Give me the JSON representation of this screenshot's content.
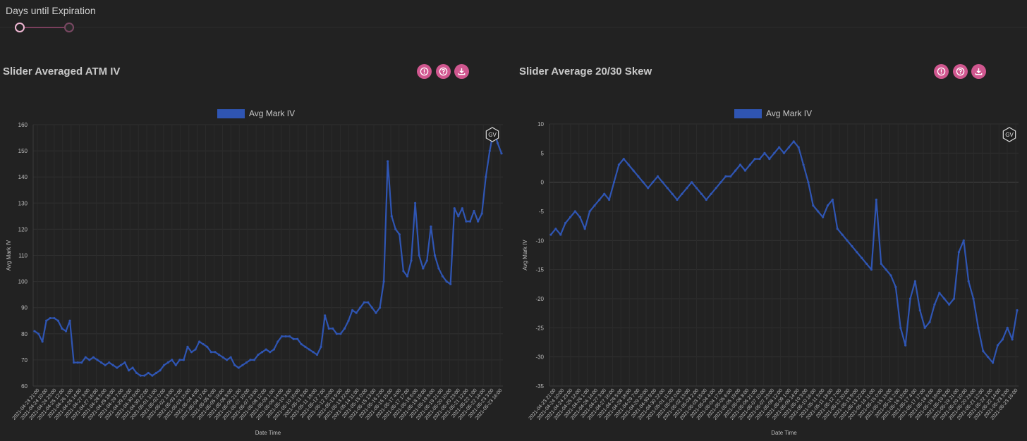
{
  "slider": {
    "label": "Days until Expiration",
    "min_handle": "min",
    "max_handle": "max"
  },
  "panels": [
    {
      "title": "Slider Averaged ATM IV",
      "icons": [
        "info-icon",
        "help-icon",
        "download-icon"
      ]
    },
    {
      "title": "Slider Average 20/30 Skew",
      "icons": [
        "info-icon",
        "help-icon",
        "download-icon"
      ]
    }
  ],
  "watermark": "GV",
  "colors": {
    "series": "#2f55b3",
    "background": "#222222",
    "button": "#d0578f"
  },
  "chart_data": [
    {
      "type": "line",
      "legend": "Avg Mark IV",
      "xlabel": "Date Time",
      "ylabel": "Avg Mark IV",
      "ylim": [
        60,
        160
      ],
      "yticks": [
        60,
        70,
        80,
        90,
        100,
        110,
        120,
        130,
        140,
        150,
        160
      ],
      "xticks": [
        "2021-04-23 21:00",
        "2021-04-24 10:00",
        "2021-04-24 23:00",
        "2021-04-25 12:00",
        "2021-04-26 1:00",
        "2021-04-26 14:00",
        "2021-04-27 3:00",
        "2021-04-27 16:00",
        "2021-04-28 5:00",
        "2021-04-28 18:00",
        "2021-04-29 7:00",
        "2021-04-29 20:00",
        "2021-04-30 9:00",
        "2021-04-30 22:00",
        "2021-05-01 11:00",
        "2021-05-02 0:00",
        "2021-05-02 13:00",
        "2021-05-03 2:00",
        "2021-05-03 15:00",
        "2021-05-04 4:00",
        "2021-05-04 17:00",
        "2021-05-05 6:00",
        "2021-05-05 19:00",
        "2021-05-06 8:00",
        "2021-05-06 21:00",
        "2021-05-07 10:00",
        "2021-05-07 23:00",
        "2021-05-08 12:00",
        "2021-05-09 1:00",
        "2021-05-09 14:00",
        "2021-05-10 3:00",
        "2021-05-10 16:00",
        "2021-05-11 5:00",
        "2021-05-11 18:00",
        "2021-05-12 7:00",
        "2021-05-12 20:00",
        "2021-05-13 9:00",
        "2021-05-13 22:00",
        "2021-05-14 11:00",
        "2021-05-15 0:00",
        "2021-05-15 13:00",
        "2021-05-16 2:00",
        "2021-05-16 15:00",
        "2021-05-17 4:00",
        "2021-05-17 17:00",
        "2021-05-18 6:00",
        "2021-05-18 19:00",
        "2021-05-19 8:00",
        "2021-05-19 21:00",
        "2021-05-20 10:00",
        "2021-05-20 23:00",
        "2021-05-21 12:00",
        "2021-05-22 1:00",
        "2021-05-22 14:00",
        "2021-05-23 3:00",
        "2021-05-23 16:00"
      ],
      "values": [
        81,
        80,
        77,
        85,
        86,
        86,
        85,
        82,
        81,
        85,
        69,
        69,
        69,
        71,
        70,
        71,
        70,
        69,
        68,
        69,
        68,
        67,
        68,
        69,
        66,
        67,
        65,
        64,
        64,
        65,
        64,
        65,
        66,
        68,
        69,
        70,
        68,
        70,
        70,
        75,
        73,
        74,
        77,
        76,
        75,
        73,
        73,
        72,
        71,
        70,
        71,
        68,
        67,
        68,
        69,
        70,
        70,
        72,
        73,
        74,
        73,
        74,
        77,
        79,
        79,
        79,
        78,
        78,
        76,
        75,
        74,
        73,
        72,
        75,
        87,
        82,
        82,
        80,
        80,
        82,
        85,
        89,
        88,
        90,
        92,
        92,
        90,
        88,
        90,
        100,
        146,
        125,
        120,
        118,
        104,
        102,
        108,
        130,
        110,
        105,
        108,
        121,
        110,
        105,
        102,
        100,
        99,
        128,
        125,
        128,
        123,
        123,
        127,
        123,
        126,
        140,
        150,
        158,
        153,
        149
      ]
    },
    {
      "type": "line",
      "legend": "Avg Mark IV",
      "xlabel": "Date Time",
      "ylabel": "Avg Mark IV",
      "ylim": [
        -35,
        10
      ],
      "yticks": [
        -35,
        -30,
        -25,
        -20,
        -15,
        -10,
        -5,
        0,
        5,
        10
      ],
      "xticks": [
        "2021-04-23 21:00",
        "2021-04-24 10:00",
        "2021-04-24 23:00",
        "2021-04-25 12:00",
        "2021-04-26 1:00",
        "2021-04-26 14:00",
        "2021-04-27 3:00",
        "2021-04-27 16:00",
        "2021-04-28 5:00",
        "2021-04-28 18:00",
        "2021-04-29 7:00",
        "2021-04-29 20:00",
        "2021-04-30 9:00",
        "2021-04-30 22:00",
        "2021-05-01 11:00",
        "2021-05-02 0:00",
        "2021-05-02 13:00",
        "2021-05-03 2:00",
        "2021-05-03 15:00",
        "2021-05-04 4:00",
        "2021-05-04 17:00",
        "2021-05-05 6:00",
        "2021-05-05 19:00",
        "2021-05-06 8:00",
        "2021-05-06 21:00",
        "2021-05-07 10:00",
        "2021-05-07 23:00",
        "2021-05-08 12:00",
        "2021-05-09 1:00",
        "2021-05-09 14:00",
        "2021-05-10 3:00",
        "2021-05-10 16:00",
        "2021-05-11 5:00",
        "2021-05-11 18:00",
        "2021-05-12 7:00",
        "2021-05-12 20:00",
        "2021-05-13 9:00",
        "2021-05-13 22:00",
        "2021-05-14 11:00",
        "2021-05-15 0:00",
        "2021-05-15 13:00",
        "2021-05-16 2:00",
        "2021-05-16 15:00",
        "2021-05-17 4:00",
        "2021-05-17 17:00",
        "2021-05-18 6:00",
        "2021-05-18 19:00",
        "2021-05-19 8:00",
        "2021-05-19 21:00",
        "2021-05-20 10:00",
        "2021-05-20 23:00",
        "2021-05-21 12:00",
        "2021-05-22 1:00",
        "2021-05-22 14:00",
        "2021-05-23 3:00",
        "2021-05-23 16:00"
      ],
      "values": [
        -9,
        -8,
        -9,
        -7,
        -6,
        -5,
        -6,
        -8,
        -5,
        -4,
        -3,
        -2,
        -3,
        0,
        3,
        4,
        3,
        2,
        1,
        0,
        -1,
        0,
        1,
        0,
        -1,
        -2,
        -3,
        -2,
        -1,
        0,
        -1,
        -2,
        -3,
        -2,
        -1,
        0,
        1,
        1,
        2,
        3,
        2,
        3,
        4,
        4,
        5,
        4,
        5,
        6,
        5,
        6,
        7,
        6,
        3,
        0,
        -4,
        -5,
        -6,
        -4,
        -3,
        -8,
        -9,
        -10,
        -11,
        -12,
        -13,
        -14,
        -15,
        -3,
        -14,
        -15,
        -16,
        -18,
        -25,
        -28,
        -20,
        -17,
        -22,
        -25,
        -24,
        -21,
        -19,
        -20,
        -21,
        -20,
        -12,
        -10,
        -17,
        -20,
        -25,
        -29,
        -30,
        -31,
        -28,
        -27,
        -25,
        -27,
        -22
      ]
    }
  ]
}
